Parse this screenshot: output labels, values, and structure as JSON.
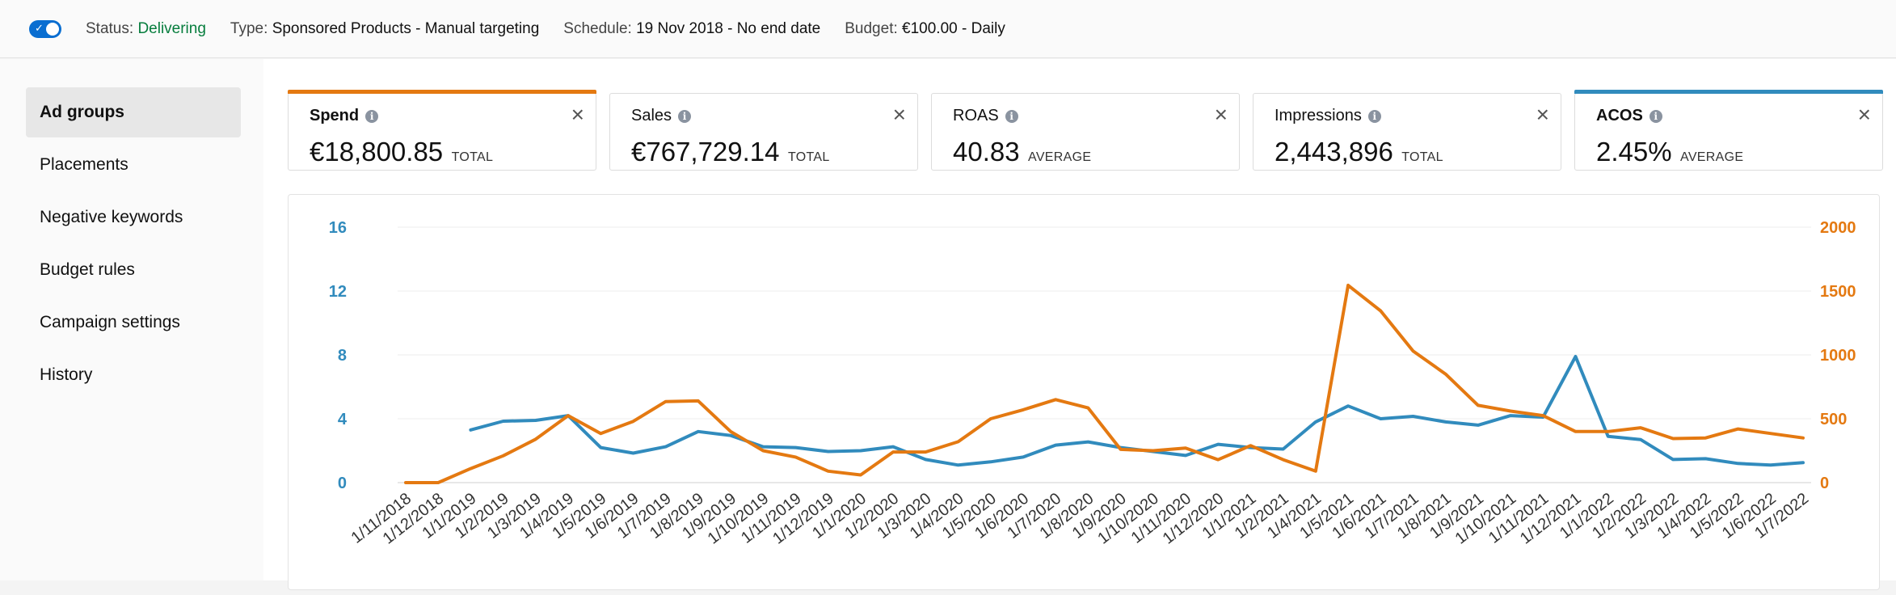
{
  "header": {
    "status_label": "Status:",
    "status_value": "Delivering",
    "type_label": "Type:",
    "type_value": "Sponsored Products - Manual targeting",
    "schedule_label": "Schedule:",
    "schedule_value": "19 Nov 2018 - No end date",
    "budget_label": "Budget:",
    "budget_value": "€100.00 - Daily"
  },
  "sidebar": {
    "items": [
      {
        "label": "Ad groups"
      },
      {
        "label": "Placements"
      },
      {
        "label": "Negative keywords"
      },
      {
        "label": "Budget rules"
      },
      {
        "label": "Campaign settings"
      },
      {
        "label": "History"
      }
    ]
  },
  "metrics": [
    {
      "name": "Spend",
      "value": "€18,800.85",
      "agg": "TOTAL",
      "accent": "#e47911"
    },
    {
      "name": "Sales",
      "value": "€767,729.14",
      "agg": "TOTAL",
      "accent": ""
    },
    {
      "name": "ROAS",
      "value": "40.83",
      "agg": "AVERAGE",
      "accent": ""
    },
    {
      "name": "Impressions",
      "value": "2,443,896",
      "agg": "TOTAL",
      "accent": ""
    },
    {
      "name": "ACOS",
      "value": "2.45%",
      "agg": "AVERAGE",
      "accent": "#318bbd"
    }
  ],
  "colors": {
    "spend": "#e47911",
    "acos": "#318bbd",
    "status_green": "#067d3d"
  },
  "chart_data": {
    "type": "line",
    "x": [
      "1/11/2018",
      "1/12/2018",
      "1/1/2019",
      "1/2/2019",
      "1/3/2019",
      "1/4/2019",
      "1/5/2019",
      "1/6/2019",
      "1/7/2019",
      "1/8/2019",
      "1/9/2019",
      "1/10/2019",
      "1/11/2019",
      "1/12/2019",
      "1/1/2020",
      "1/2/2020",
      "1/3/2020",
      "1/4/2020",
      "1/5/2020",
      "1/6/2020",
      "1/7/2020",
      "1/8/2020",
      "1/9/2020",
      "1/10/2020",
      "1/11/2020",
      "1/12/2020",
      "1/1/2021",
      "1/2/2021",
      "1/4/2021",
      "1/5/2021",
      "1/6/2021",
      "1/7/2021",
      "1/8/2021",
      "1/9/2021",
      "1/10/2021",
      "1/11/2021",
      "1/12/2021",
      "1/1/2022",
      "1/2/2022",
      "1/3/2022",
      "1/4/2022",
      "1/5/2022",
      "1/6/2022",
      "1/7/2022"
    ],
    "y_left": {
      "ticks": [
        0,
        4,
        8,
        12,
        16
      ],
      "range": [
        0,
        16
      ],
      "color": "#318bbd"
    },
    "y_right": {
      "ticks": [
        0,
        500,
        1000,
        1500,
        2000
      ],
      "range": [
        0,
        2000
      ],
      "color": "#e47911"
    },
    "grid": true,
    "series": [
      {
        "name": "ACOS",
        "axis": "left",
        "color": "#318bbd",
        "values": [
          null,
          null,
          3.3,
          3.85,
          3.9,
          4.2,
          2.2,
          1.85,
          2.25,
          3.2,
          2.95,
          2.25,
          2.2,
          1.95,
          2.0,
          2.25,
          1.45,
          1.1,
          1.3,
          1.6,
          2.35,
          2.55,
          2.2,
          1.95,
          1.7,
          2.4,
          2.2,
          2.1,
          3.8,
          4.8,
          4.0,
          4.15,
          3.8,
          3.6,
          4.2,
          4.1,
          7.9,
          2.9,
          2.7,
          1.45,
          1.5,
          1.2,
          1.1,
          1.25
        ]
      },
      {
        "name": "Spend",
        "axis": "right",
        "color": "#e47911",
        "values": [
          0,
          0,
          110,
          210,
          340,
          525,
          385,
          480,
          635,
          640,
          400,
          250,
          200,
          90,
          60,
          240,
          240,
          320,
          500,
          570,
          650,
          585,
          260,
          250,
          270,
          180,
          290,
          180,
          90,
          1545,
          1345,
          1030,
          850,
          605,
          560,
          525,
          400,
          400,
          430,
          345,
          350,
          420,
          385,
          350
        ]
      }
    ]
  }
}
